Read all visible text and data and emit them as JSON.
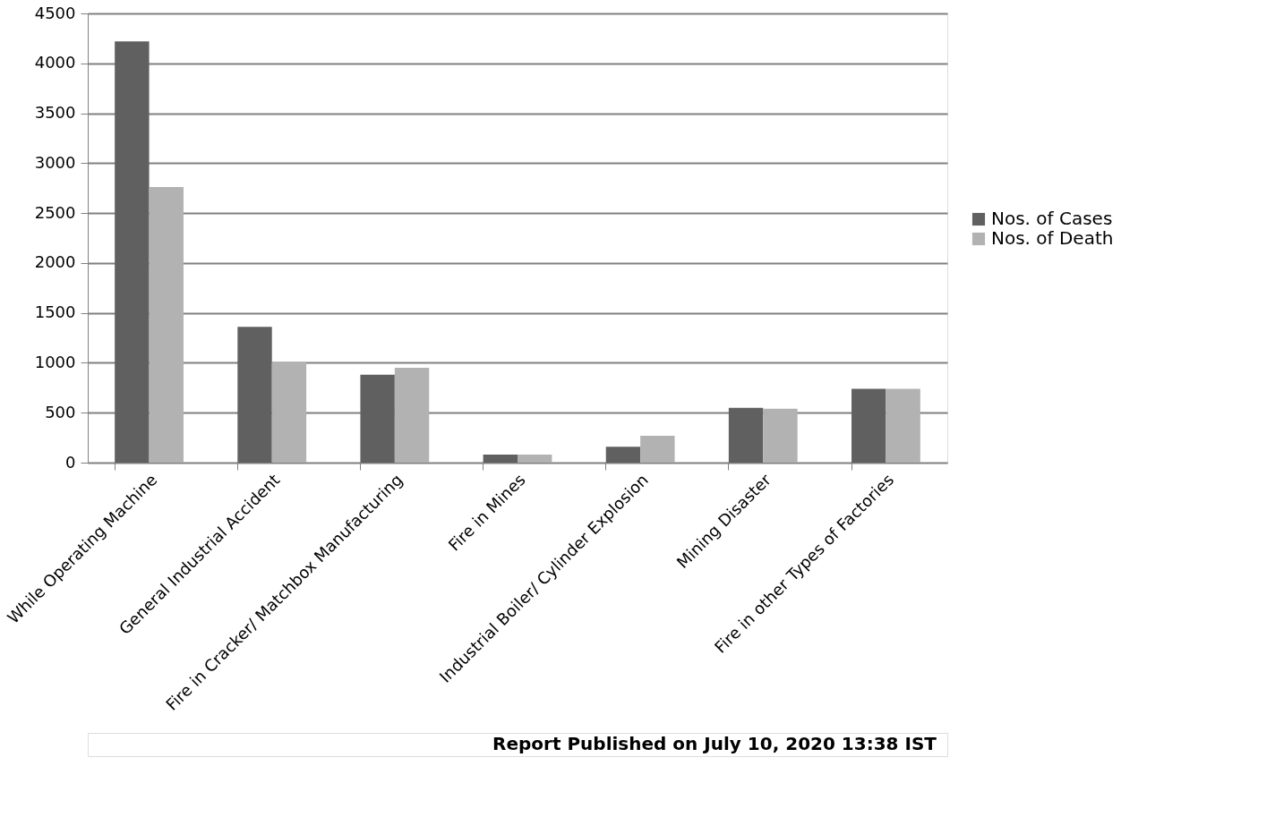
{
  "chart_data": {
    "type": "bar",
    "categories": [
      "While Operating Machine",
      "General Industrial Accident",
      "Fire in Cracker/ Matchbox Manufacturing",
      "Fire in Mines",
      "Industrial Boiler/ Cylinder Explosion",
      "Mining Disaster",
      "Fire in other Types of Factories"
    ],
    "series": [
      {
        "name": "Nos. of Cases",
        "color": "#606060",
        "values": [
          4220,
          1360,
          880,
          80,
          160,
          550,
          740
        ]
      },
      {
        "name": "Nos. of Death",
        "color": "#b2b2b2",
        "values": [
          2760,
          1010,
          950,
          80,
          270,
          540,
          740
        ]
      }
    ],
    "ylim": [
      0,
      4500
    ],
    "yticks": [
      0,
      500,
      1000,
      1500,
      2000,
      2500,
      3000,
      3500,
      4000,
      4500
    ],
    "grid": "y",
    "legend": "right",
    "annotations": [
      "Report Published on July 10, 2020 13:38 IST"
    ]
  }
}
